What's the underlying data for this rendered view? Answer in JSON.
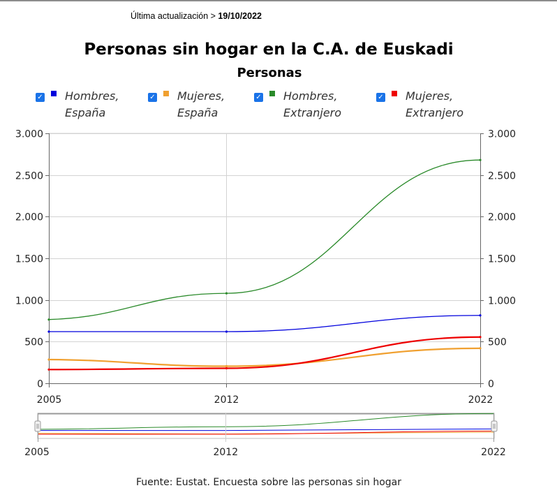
{
  "header": {
    "updated_label": "Última actualización >",
    "updated_date": "19/10/2022"
  },
  "chart_data": {
    "type": "line",
    "title": "Personas sin hogar en la C.A. de Euskadi",
    "subtitle": "Personas",
    "x": [
      2005,
      2012,
      2022
    ],
    "x_tick_labels": [
      "2005",
      "2012",
      "2022"
    ],
    "ylim": [
      0,
      3000
    ],
    "y_ticks": [
      0,
      500,
      1000,
      1500,
      2000,
      2500,
      3000
    ],
    "y_tick_labels": [
      "0",
      "500",
      "1.000",
      "1.500",
      "2.000",
      "2.500",
      "3.000"
    ],
    "grid": true,
    "legend_position": "top",
    "series": [
      {
        "name": "Hombres, España",
        "line1": "Hombres,",
        "line2": "España",
        "color": "#0000dd",
        "values": [
          620,
          620,
          815
        ]
      },
      {
        "name": "Mujeres, España",
        "line1": "Mujeres,",
        "line2": "España",
        "color": "#f0a030",
        "values": [
          285,
          205,
          420
        ]
      },
      {
        "name": "Hombres, Extranjero",
        "line1": "Hombres,",
        "line2": "Extranjero",
        "color": "#2a8a2a",
        "values": [
          765,
          1080,
          2680
        ]
      },
      {
        "name": "Mujeres, Extranjero",
        "line1": "Mujeres,",
        "line2": "Extranjero",
        "color": "#ee0000",
        "values": [
          165,
          180,
          555
        ]
      }
    ],
    "navigator": {
      "x_tick_labels": [
        "2005",
        "2012",
        "2022"
      ]
    }
  },
  "footer": {
    "source": "Fuente: Eustat. Encuesta sobre las personas sin hogar"
  }
}
